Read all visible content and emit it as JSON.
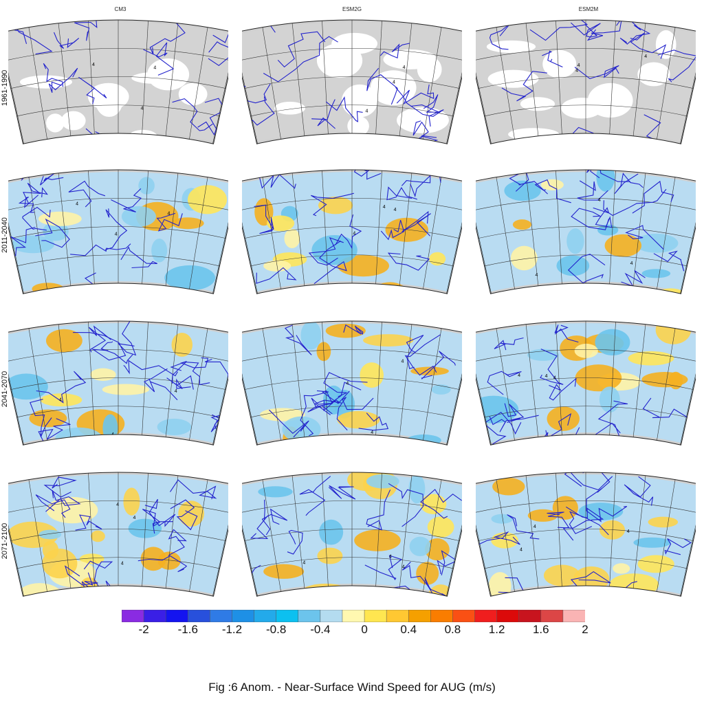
{
  "columns": [
    "CM3",
    "ESM2G",
    "ESM2M"
  ],
  "rows": [
    "1961-1990",
    "2011-2040",
    "2041-2070",
    "2071-2100"
  ],
  "contour_label": "4",
  "colorbar": {
    "colors": [
      "#8a2be2",
      "#3a1fe6",
      "#1414f0",
      "#2850dc",
      "#2f7be6",
      "#1e90e6",
      "#23aaea",
      "#0cc0f0",
      "#6cc4ec",
      "#b4dcf0",
      "#fff8b0",
      "#ffe650",
      "#ffc832",
      "#f5a000",
      "#fa7d00",
      "#fa5014",
      "#f01e1e",
      "#dc0a0a",
      "#c8141e",
      "#dc4646",
      "#fab4b4"
    ],
    "tick_labels": [
      "-2",
      "-1.6",
      "-1.2",
      "-0.8",
      "-0.4",
      "0",
      "0.4",
      "0.8",
      "1.2",
      "1.6",
      "2"
    ]
  },
  "caption": "Fig :6  Anom.  - Near-Surface Wind Speed for AUG (m/s)"
}
